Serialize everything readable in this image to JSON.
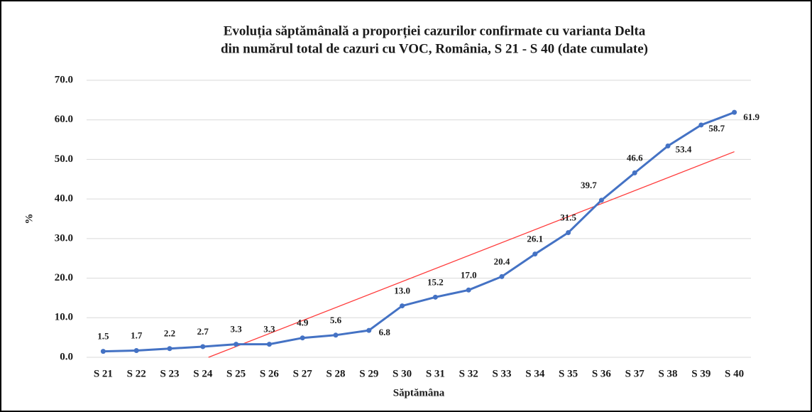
{
  "chart_data": {
    "type": "line",
    "title": [
      "Evoluția săptămânală a proporției cazurilor confirmate cu varianta Delta",
      "din numărul total de cazuri cu VOC, România, S 21 - S 40 (date cumulate)"
    ],
    "x_label": "Săptămâna",
    "y_label": "%",
    "categories": [
      "S 21",
      "S 22",
      "S 23",
      "S 24",
      "S 25",
      "S 26",
      "S 27",
      "S 28",
      "S 29",
      "S 30",
      "S 31",
      "S 32",
      "S 33",
      "S 34",
      "S 35",
      "S 36",
      "S 37",
      "S 38",
      "S 39",
      "S 40"
    ],
    "series": [
      {
        "name": "%",
        "color": "#4472c4",
        "values": [
          1.5,
          1.7,
          2.2,
          2.7,
          3.3,
          3.3,
          4.9,
          5.6,
          6.8,
          13.0,
          15.2,
          17.0,
          20.4,
          26.1,
          31.5,
          39.7,
          46.6,
          53.4,
          58.7,
          61.9
        ],
        "value_labels": [
          "1.5",
          "1.7",
          "2.2",
          "2.7",
          "3.3",
          "3.3",
          "4.9",
          "5.6",
          "6.8",
          "13.0",
          "15.2",
          "17.0",
          "20.4",
          "26.1",
          "31.5",
          "39.7",
          "46.6",
          "53.4",
          "58.7",
          "61.9"
        ]
      }
    ],
    "trendline": "linear",
    "trendline_color": "#ff3b3b",
    "ylim": [
      0,
      70
    ],
    "yticks": [
      {
        "value": 0,
        "label": "0.0"
      },
      {
        "value": 10,
        "label": "10.0"
      },
      {
        "value": 20,
        "label": "20.0"
      },
      {
        "value": 30,
        "label": "30.0"
      },
      {
        "value": 40,
        "label": "40.0"
      },
      {
        "value": 50,
        "label": "50.0"
      },
      {
        "value": 60,
        "label": "60.0"
      },
      {
        "value": 70,
        "label": "70.0"
      }
    ],
    "grid": true
  }
}
